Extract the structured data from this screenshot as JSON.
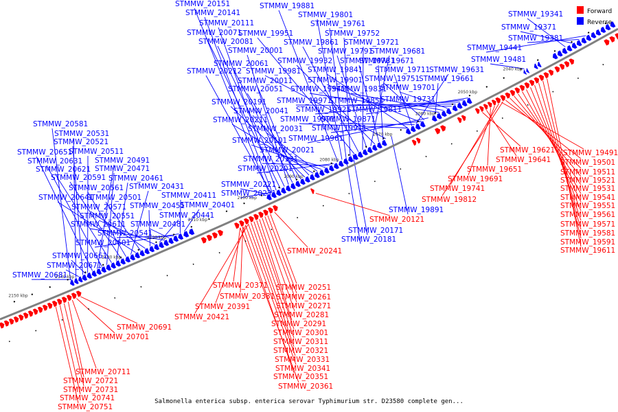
{
  "title": "Salmonella enterica subsp. enterica serovar Typhimurium str. D23580 complete gen...",
  "legend": [
    {
      "label": "Forward",
      "color": "#ff0000"
    },
    {
      "label": "Reverse",
      "color": "#0000ff"
    }
  ],
  "colors": {
    "forward": "#ff0000",
    "reverse": "#0000ff",
    "backbone": "#808080"
  },
  "ticks": [
    "2040 kbp",
    "2050 kbp",
    "2060 kbp",
    "2070 kbp",
    "2080 kbp",
    "2090 kbp",
    "2100 kbp",
    "2110 kbp",
    "2120 kbp",
    "2130 kbp",
    "2140 kbp",
    "2150 kbp"
  ],
  "reverse_labels": [
    "STMMW_20151",
    "STMMW_20141",
    "STMMW_20111",
    "STMMW_20071",
    "STMMW_20081",
    "STMMW_20001",
    "STMMW_20061",
    "STMMW_20212",
    "STMMW_20011",
    "STMMW_20051",
    "STMMW_20191",
    "STMMW_20041",
    "STMMW_20211",
    "STMMW_20031",
    "STMMW_20101",
    "STMMW_20021",
    "STMMW_20131",
    "STMMW_20201",
    "STMMW_19881",
    "STMMW_19801",
    "STMMW_19761",
    "STMMW_19752",
    "STMMW_19951",
    "STMMW_19861",
    "STMMW_19721",
    "STMMW_19791",
    "STMMW_19681",
    "STMMW_19932",
    "STMMW_19781",
    "STMMW_19671",
    "STMMW_19981",
    "STMMW_19841",
    "STMMW_19711",
    "STMMW_19631",
    "STMMW_19901",
    "STMMW_19751",
    "STMMW_19661",
    "STMMW_19941",
    "STMMW_19831",
    "STMMW_19701",
    "STMMW_19971",
    "STMMW_19851",
    "STMMW_19731",
    "STMMW_19921",
    "STMMW_19811",
    "STMMW_19991",
    "STMMW_19871",
    "STMMW_19911",
    "STMMW_19961",
    "STMMW_19341",
    "STMMW_19371",
    "STMMW_19381",
    "STMMW_19441",
    "STMMW_19481",
    "STMMW_20581",
    "STMMW_20531",
    "STMMW_20521",
    "STMMW_20511",
    "STMMW_20651",
    "STMMW_20491",
    "STMMW_20631",
    "STMMW_20471",
    "STMMW_20621",
    "STMMW_20461",
    "STMMW_20591",
    "STMMW_20561",
    "STMMW_20431",
    "STMMW_20411",
    "STMMW_20641",
    "STMMW_20501",
    "STMMW_20571",
    "STMMW_20451",
    "STMMW_20401",
    "STMMW_20551",
    "STMMW_20441",
    "STMMW_20611",
    "STMMW_20481",
    "STMMW_20541",
    "STMMW_20601",
    "STMMW_20661",
    "STMMW_20671",
    "STMMW_20681",
    "STMMW_20221",
    "STMMW_20231",
    "STMMW_19891",
    "STMMW_20171",
    "STMMW_20181"
  ],
  "forward_labels": [
    "STMMW_19621",
    "STMMW_19491",
    "STMMW_19641",
    "STMMW_19501",
    "STMMW_19651",
    "STMMW_19511",
    "STMMW_19691",
    "STMMW_19521",
    "STMMW_19741",
    "STMMW_19531",
    "STMMW_19812",
    "STMMW_19541",
    "STMMW_19551",
    "STMMW_19561",
    "STMMW_19571",
    "STMMW_19581",
    "STMMW_19591",
    "STMMW_19611",
    "STMMW_20121",
    "STMMW_20241",
    "STMMW_20371",
    "STMMW_20251",
    "STMMW_20381",
    "STMMW_20261",
    "STMMW_20391",
    "STMMW_20271",
    "STMMW_20421",
    "STMMW_20281",
    "STMMW_20291",
    "STMMW_20301",
    "STMMW_20311",
    "STMMW_20321",
    "STMMW_20331",
    "STMMW_20341",
    "STMMW_20351",
    "STMMW_20361",
    "STMMW_20691",
    "STMMW_20701",
    "STMMW_20711",
    "STMMW_20721",
    "STMMW_20731",
    "STMMW_20741",
    "STMMW_20751"
  ]
}
